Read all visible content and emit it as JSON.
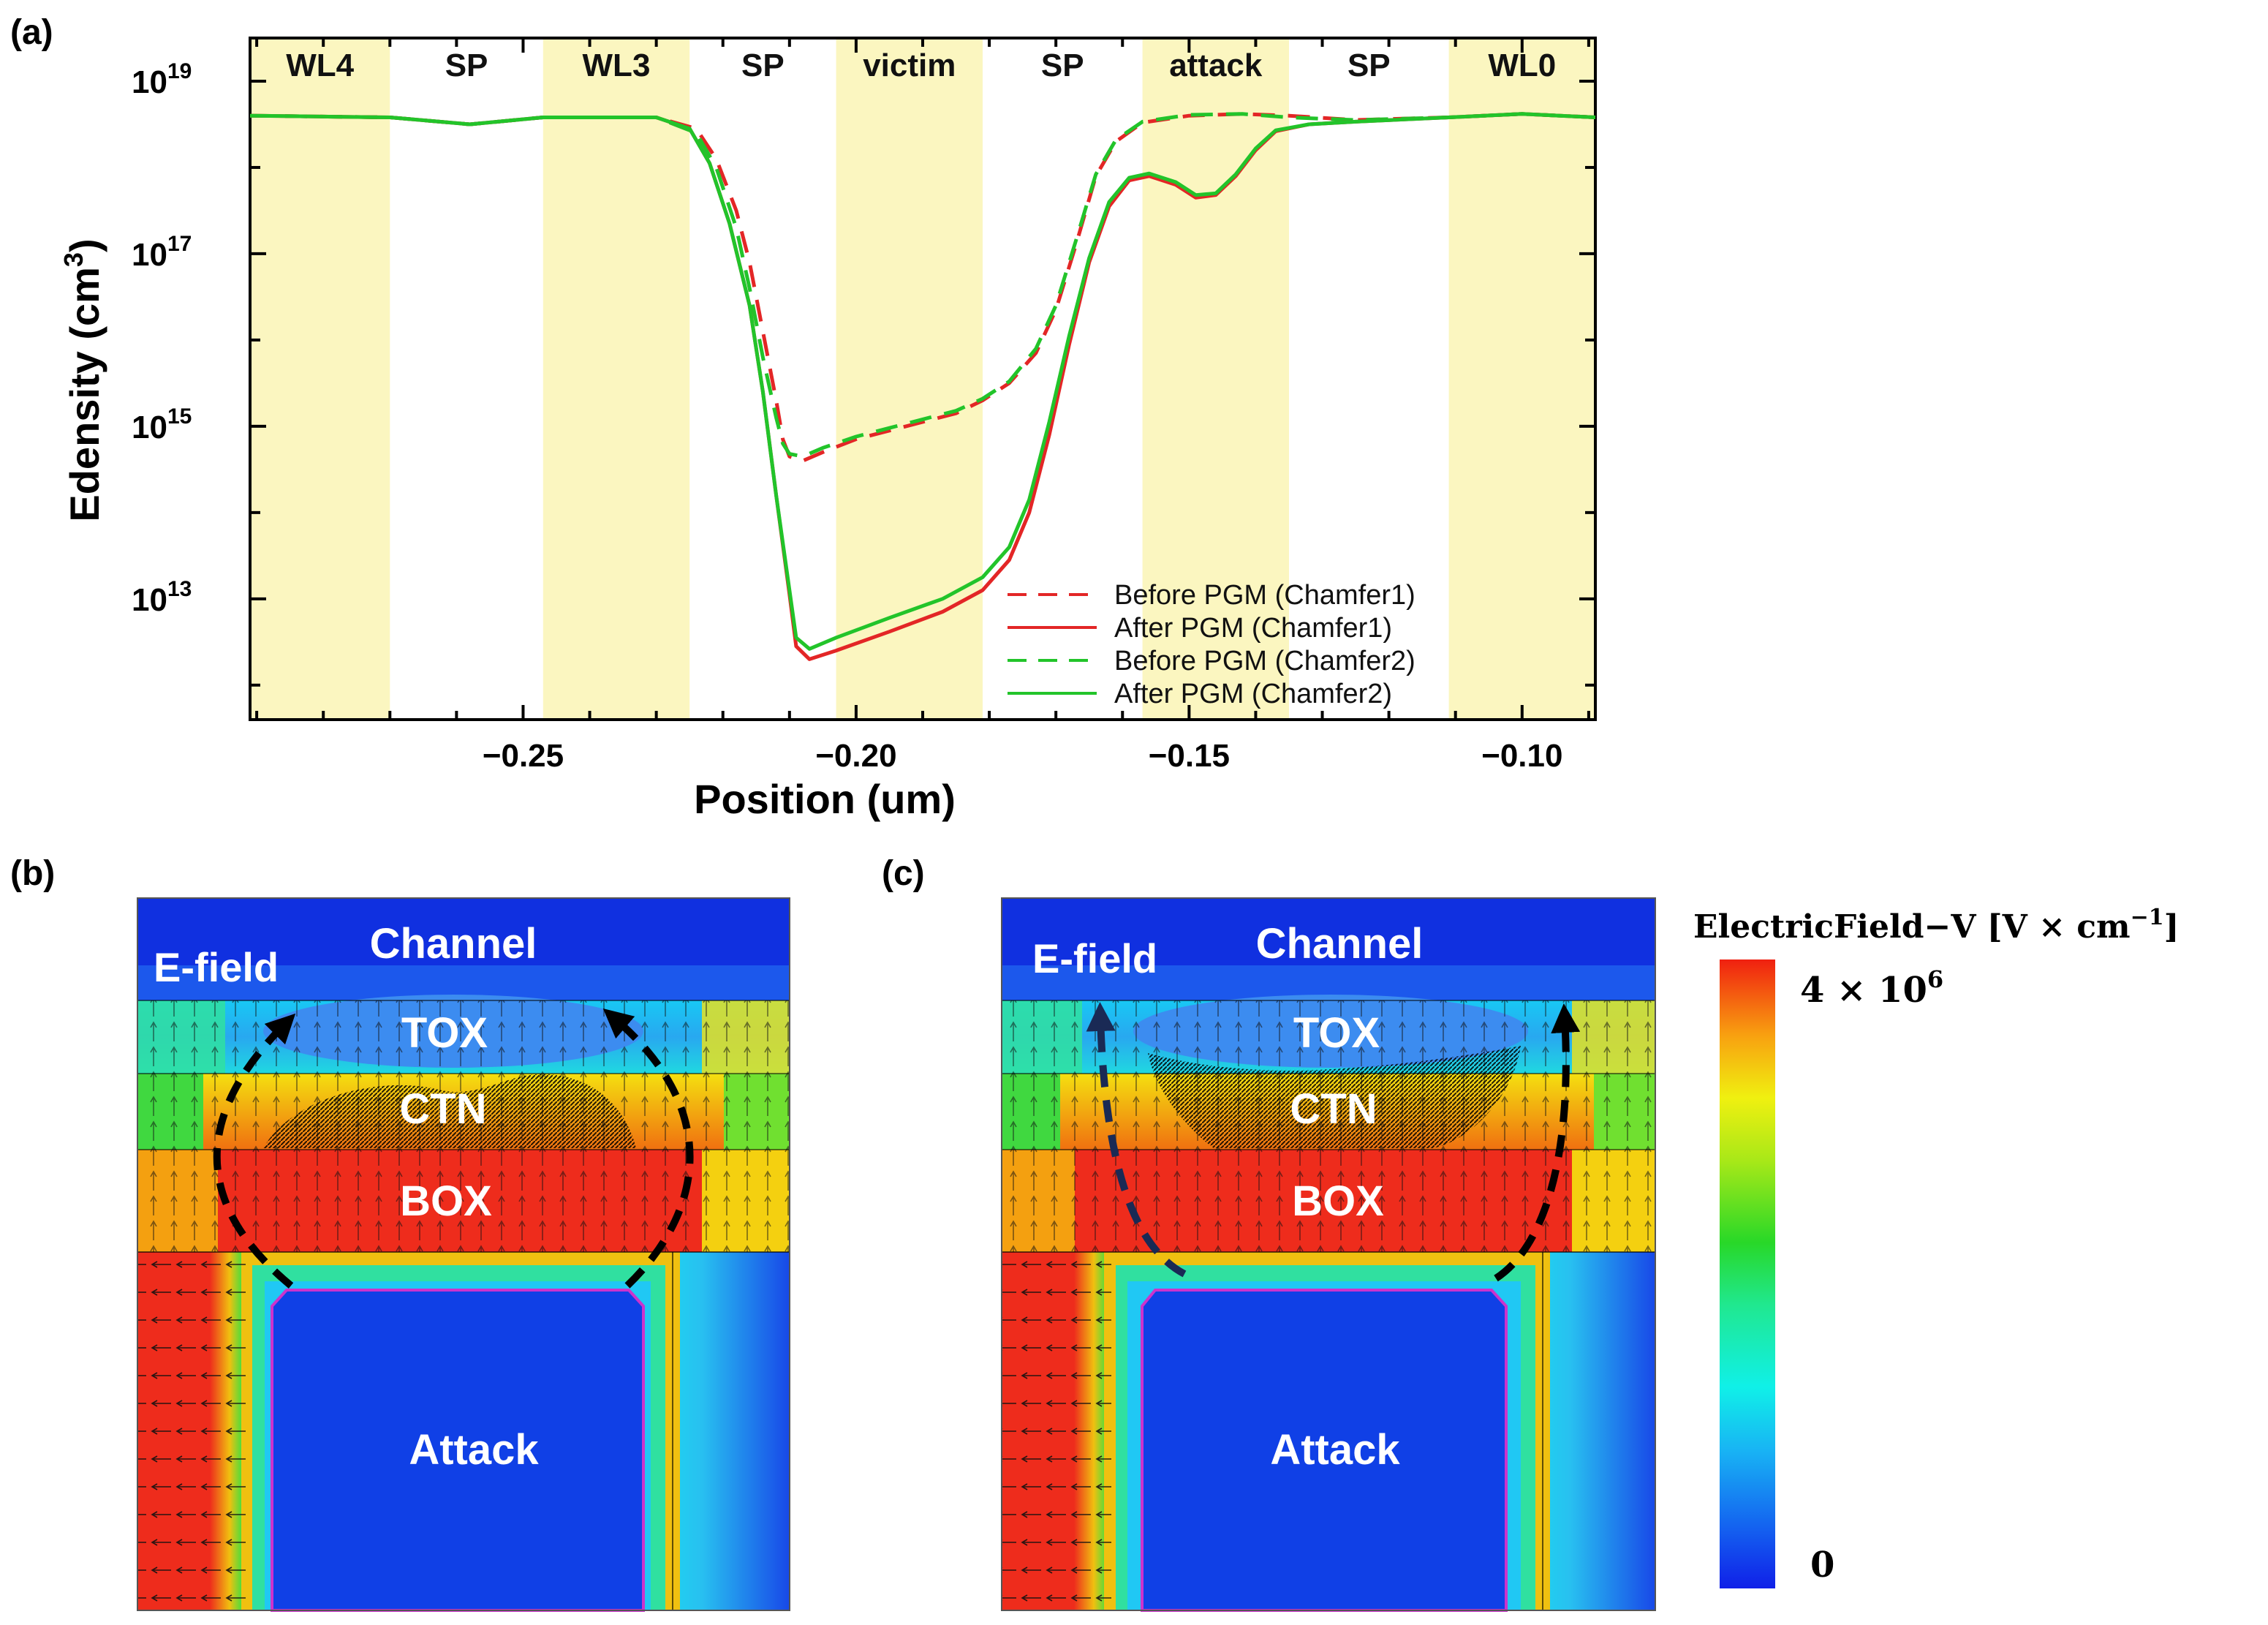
{
  "panel_labels": {
    "a": "(a)",
    "b": "(b)",
    "c": "(c)"
  },
  "colors": {
    "highlight": "#fbf6c0",
    "red": "#e32626",
    "green": "#22c42a",
    "map_blue": "#1030e6",
    "map_red": "#ee2c1c"
  },
  "chart_data": {
    "type": "line",
    "title": "",
    "xlabel": "Position (um)",
    "ylabel": "Edensity (cm3)",
    "ylabel_main": "Edensity (cm",
    "ylabel_sup": "3",
    "ylabel_close": ")",
    "xlim": [
      -0.291,
      -0.089
    ],
    "ylim_log10": [
      11.6,
      19.5
    ],
    "x_ticks": [
      {
        "value": -0.25,
        "label": "−0.25"
      },
      {
        "value": -0.2,
        "label": "−0.20"
      },
      {
        "value": -0.15,
        "label": "−0.15"
      },
      {
        "value": -0.1,
        "label": "−0.10"
      }
    ],
    "y_ticks": [
      {
        "exp": 19,
        "base": "10",
        "sup": "19"
      },
      {
        "exp": 17,
        "base": "10",
        "sup": "17"
      },
      {
        "exp": 15,
        "base": "10",
        "sup": "15"
      },
      {
        "exp": 13,
        "base": "10",
        "sup": "13"
      }
    ],
    "regions": [
      {
        "label": "WL4",
        "x0": -0.291,
        "x1": -0.27,
        "highlight": true
      },
      {
        "label": "SP",
        "x0": -0.27,
        "x1": -0.247,
        "highlight": false
      },
      {
        "label": "WL3",
        "x0": -0.247,
        "x1": -0.225,
        "highlight": true
      },
      {
        "label": "SP",
        "x0": -0.225,
        "x1": -0.203,
        "highlight": false
      },
      {
        "label": "victim",
        "x0": -0.203,
        "x1": -0.181,
        "highlight": true
      },
      {
        "label": "SP",
        "x0": -0.181,
        "x1": -0.157,
        "highlight": false
      },
      {
        "label": "attack",
        "x0": -0.157,
        "x1": -0.135,
        "highlight": true
      },
      {
        "label": "SP",
        "x0": -0.135,
        "x1": -0.111,
        "highlight": false
      },
      {
        "label": "WL0",
        "x0": -0.111,
        "x1": -0.089,
        "highlight": true
      }
    ],
    "series": [
      {
        "name": "Before PGM (Chamfer1)",
        "color": "red",
        "dash": true,
        "points": [
          [
            -0.291,
            18.6
          ],
          [
            -0.27,
            18.58
          ],
          [
            -0.258,
            18.5
          ],
          [
            -0.247,
            18.58
          ],
          [
            -0.23,
            18.58
          ],
          [
            -0.224,
            18.45
          ],
          [
            -0.221,
            18.1
          ],
          [
            -0.218,
            17.5
          ],
          [
            -0.216,
            16.9
          ],
          [
            -0.214,
            16.1
          ],
          [
            -0.212,
            15.3
          ],
          [
            -0.211,
            14.85
          ],
          [
            -0.21,
            14.65
          ],
          [
            -0.208,
            14.6
          ],
          [
            -0.205,
            14.7
          ],
          [
            -0.2,
            14.85
          ],
          [
            -0.195,
            14.95
          ],
          [
            -0.19,
            15.05
          ],
          [
            -0.185,
            15.15
          ],
          [
            -0.181,
            15.3
          ],
          [
            -0.177,
            15.5
          ],
          [
            -0.173,
            15.85
          ],
          [
            -0.17,
            16.35
          ],
          [
            -0.167,
            17.1
          ],
          [
            -0.164,
            17.9
          ],
          [
            -0.161,
            18.3
          ],
          [
            -0.157,
            18.52
          ],
          [
            -0.15,
            18.6
          ],
          [
            -0.142,
            18.62
          ],
          [
            -0.135,
            18.6
          ],
          [
            -0.125,
            18.55
          ],
          [
            -0.111,
            18.58
          ],
          [
            -0.1,
            18.62
          ],
          [
            -0.089,
            18.58
          ]
        ]
      },
      {
        "name": "After PGM (Chamfer1)",
        "color": "red",
        "dash": false,
        "points": [
          [
            -0.291,
            18.6
          ],
          [
            -0.27,
            18.58
          ],
          [
            -0.258,
            18.5
          ],
          [
            -0.247,
            18.58
          ],
          [
            -0.23,
            18.58
          ],
          [
            -0.225,
            18.45
          ],
          [
            -0.222,
            18.05
          ],
          [
            -0.219,
            17.35
          ],
          [
            -0.216,
            16.4
          ],
          [
            -0.214,
            15.4
          ],
          [
            -0.212,
            14.2
          ],
          [
            -0.21,
            13.05
          ],
          [
            -0.209,
            12.45
          ],
          [
            -0.207,
            12.3
          ],
          [
            -0.203,
            12.4
          ],
          [
            -0.195,
            12.62
          ],
          [
            -0.187,
            12.85
          ],
          [
            -0.181,
            13.1
          ],
          [
            -0.177,
            13.45
          ],
          [
            -0.174,
            14.0
          ],
          [
            -0.171,
            14.9
          ],
          [
            -0.168,
            15.95
          ],
          [
            -0.165,
            16.9
          ],
          [
            -0.162,
            17.55
          ],
          [
            -0.159,
            17.85
          ],
          [
            -0.156,
            17.9
          ],
          [
            -0.152,
            17.8
          ],
          [
            -0.149,
            17.65
          ],
          [
            -0.146,
            17.68
          ],
          [
            -0.143,
            17.9
          ],
          [
            -0.14,
            18.2
          ],
          [
            -0.137,
            18.42
          ],
          [
            -0.132,
            18.5
          ],
          [
            -0.125,
            18.53
          ],
          [
            -0.111,
            18.58
          ],
          [
            -0.1,
            18.62
          ],
          [
            -0.089,
            18.58
          ]
        ]
      },
      {
        "name": "Before PGM (Chamfer2)",
        "color": "green",
        "dash": true,
        "points": [
          [
            -0.291,
            18.6
          ],
          [
            -0.27,
            18.58
          ],
          [
            -0.258,
            18.5
          ],
          [
            -0.247,
            18.58
          ],
          [
            -0.23,
            18.58
          ],
          [
            -0.224,
            18.4
          ],
          [
            -0.221,
            18.0
          ],
          [
            -0.218,
            17.3
          ],
          [
            -0.216,
            16.6
          ],
          [
            -0.214,
            15.8
          ],
          [
            -0.212,
            15.1
          ],
          [
            -0.211,
            14.8
          ],
          [
            -0.21,
            14.68
          ],
          [
            -0.208,
            14.65
          ],
          [
            -0.205,
            14.75
          ],
          [
            -0.2,
            14.88
          ],
          [
            -0.195,
            14.98
          ],
          [
            -0.19,
            15.08
          ],
          [
            -0.185,
            15.18
          ],
          [
            -0.181,
            15.32
          ],
          [
            -0.177,
            15.52
          ],
          [
            -0.173,
            15.9
          ],
          [
            -0.17,
            16.4
          ],
          [
            -0.167,
            17.15
          ],
          [
            -0.164,
            17.92
          ],
          [
            -0.161,
            18.32
          ],
          [
            -0.157,
            18.53
          ],
          [
            -0.15,
            18.61
          ],
          [
            -0.142,
            18.62
          ],
          [
            -0.135,
            18.58
          ],
          [
            -0.125,
            18.55
          ],
          [
            -0.111,
            18.58
          ],
          [
            -0.1,
            18.62
          ],
          [
            -0.089,
            18.58
          ]
        ]
      },
      {
        "name": "After PGM (Chamfer2)",
        "color": "green",
        "dash": false,
        "points": [
          [
            -0.291,
            18.6
          ],
          [
            -0.27,
            18.58
          ],
          [
            -0.258,
            18.5
          ],
          [
            -0.247,
            18.58
          ],
          [
            -0.23,
            18.58
          ],
          [
            -0.225,
            18.45
          ],
          [
            -0.222,
            18.05
          ],
          [
            -0.219,
            17.35
          ],
          [
            -0.216,
            16.4
          ],
          [
            -0.214,
            15.4
          ],
          [
            -0.212,
            14.2
          ],
          [
            -0.21,
            13.1
          ],
          [
            -0.209,
            12.55
          ],
          [
            -0.207,
            12.42
          ],
          [
            -0.203,
            12.55
          ],
          [
            -0.195,
            12.78
          ],
          [
            -0.187,
            13.0
          ],
          [
            -0.181,
            13.25
          ],
          [
            -0.177,
            13.6
          ],
          [
            -0.174,
            14.15
          ],
          [
            -0.171,
            15.05
          ],
          [
            -0.168,
            16.05
          ],
          [
            -0.165,
            16.95
          ],
          [
            -0.162,
            17.6
          ],
          [
            -0.159,
            17.88
          ],
          [
            -0.156,
            17.93
          ],
          [
            -0.152,
            17.83
          ],
          [
            -0.149,
            17.68
          ],
          [
            -0.146,
            17.7
          ],
          [
            -0.143,
            17.92
          ],
          [
            -0.14,
            18.22
          ],
          [
            -0.137,
            18.43
          ],
          [
            -0.132,
            18.5
          ],
          [
            -0.125,
            18.53
          ],
          [
            -0.111,
            18.58
          ],
          [
            -0.1,
            18.62
          ],
          [
            -0.089,
            18.58
          ]
        ]
      }
    ],
    "legend_position": "bottom-right"
  },
  "panel_b": {
    "labels": {
      "channel": "Channel",
      "efield": "E-field",
      "tox": "TOX",
      "ctn": "CTN",
      "box": "BOX",
      "attack": "Attack"
    }
  },
  "panel_c": {
    "labels": {
      "channel": "Channel",
      "efield": "E-field",
      "tox": "TOX",
      "ctn": "CTN",
      "box": "BOX",
      "attack": "Attack"
    }
  },
  "colorbar": {
    "title": "ElectricField−V [V × cm",
    "title_sup": "−1",
    "title_close": "]",
    "max_label": "4 × 10",
    "max_sup": "6",
    "min_label": "0"
  }
}
